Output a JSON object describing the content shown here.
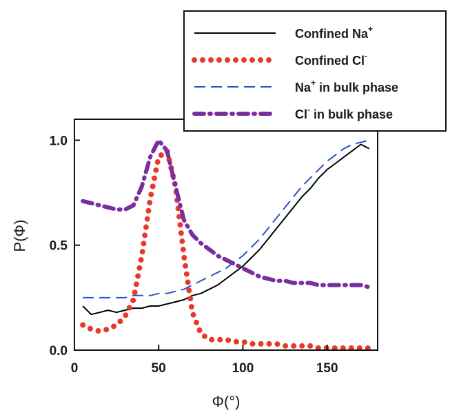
{
  "chart_data": {
    "type": "line",
    "title": "",
    "xlabel": "Φ(°)",
    "ylabel": "P(Φ)",
    "xlim": [
      0,
      180
    ],
    "ylim": [
      0,
      1.1
    ],
    "xticks": [
      0,
      50,
      100,
      150
    ],
    "yticks": [
      0.0,
      0.5,
      1.0
    ],
    "xtick_labels": [
      "0",
      "50",
      "100",
      "150"
    ],
    "ytick_labels": [
      "0.0",
      "0.5",
      "1.0"
    ],
    "grid": false,
    "legend_position": "top-right",
    "series": [
      {
        "name": "Confined Na+",
        "legend_base": "Confined Na",
        "legend_sup": "+",
        "color": "#000000",
        "style": "solid",
        "x": [
          5,
          10,
          15,
          20,
          25,
          30,
          35,
          40,
          45,
          50,
          55,
          60,
          65,
          70,
          75,
          80,
          85,
          90,
          95,
          100,
          105,
          110,
          115,
          120,
          125,
          130,
          135,
          140,
          145,
          150,
          155,
          160,
          165,
          170,
          175
        ],
        "y": [
          0.21,
          0.17,
          0.18,
          0.19,
          0.18,
          0.19,
          0.2,
          0.2,
          0.21,
          0.21,
          0.22,
          0.23,
          0.24,
          0.26,
          0.27,
          0.29,
          0.31,
          0.34,
          0.37,
          0.4,
          0.44,
          0.48,
          0.53,
          0.58,
          0.63,
          0.68,
          0.73,
          0.77,
          0.82,
          0.86,
          0.89,
          0.92,
          0.95,
          0.98,
          0.96
        ]
      },
      {
        "name": "Confined Cl-",
        "legend_base": "Confined Cl",
        "legend_sup": "-",
        "color": "#e8382c",
        "style": "dotted",
        "x": [
          5,
          10,
          15,
          20,
          25,
          30,
          35,
          40,
          45,
          50,
          55,
          60,
          65,
          70,
          75,
          80,
          85,
          90,
          95,
          100,
          105,
          110,
          115,
          120,
          125,
          130,
          135,
          140,
          145,
          150,
          155,
          160,
          165,
          170,
          175
        ],
        "y": [
          0.12,
          0.1,
          0.09,
          0.1,
          0.12,
          0.16,
          0.24,
          0.45,
          0.72,
          0.92,
          0.95,
          0.78,
          0.45,
          0.18,
          0.08,
          0.05,
          0.05,
          0.05,
          0.04,
          0.04,
          0.03,
          0.03,
          0.03,
          0.03,
          0.02,
          0.02,
          0.02,
          0.02,
          0.01,
          0.01,
          0.01,
          0.01,
          0.01,
          0.01,
          0.01
        ]
      },
      {
        "name": "Na+ in bulk phase",
        "legend_base": "Na",
        "legend_sup": "+",
        "legend_rest": " in bulk phase",
        "color": "#2b4fc8",
        "style": "dashed",
        "x": [
          5,
          10,
          15,
          20,
          25,
          30,
          35,
          40,
          45,
          50,
          55,
          60,
          65,
          70,
          75,
          80,
          85,
          90,
          95,
          100,
          105,
          110,
          115,
          120,
          125,
          130,
          135,
          140,
          145,
          150,
          155,
          160,
          165,
          170,
          175
        ],
        "y": [
          0.25,
          0.25,
          0.25,
          0.25,
          0.25,
          0.25,
          0.26,
          0.26,
          0.26,
          0.27,
          0.27,
          0.28,
          0.29,
          0.31,
          0.33,
          0.35,
          0.37,
          0.39,
          0.42,
          0.45,
          0.49,
          0.53,
          0.58,
          0.63,
          0.68,
          0.73,
          0.78,
          0.82,
          0.86,
          0.9,
          0.93,
          0.96,
          0.98,
          0.99,
          1.0
        ]
      },
      {
        "name": "Cl- in bulk phase",
        "legend_base": "Cl",
        "legend_sup": "-",
        "legend_rest": " in bulk phase",
        "color": "#7a2ea0",
        "style": "dashdot",
        "x": [
          5,
          10,
          15,
          20,
          25,
          30,
          35,
          40,
          45,
          50,
          55,
          60,
          65,
          70,
          75,
          80,
          85,
          90,
          95,
          100,
          105,
          110,
          115,
          120,
          125,
          130,
          135,
          140,
          145,
          150,
          155,
          160,
          165,
          170,
          175
        ],
        "y": [
          0.71,
          0.7,
          0.69,
          0.68,
          0.67,
          0.67,
          0.69,
          0.78,
          0.92,
          1.0,
          0.95,
          0.78,
          0.62,
          0.55,
          0.51,
          0.48,
          0.45,
          0.43,
          0.41,
          0.39,
          0.37,
          0.35,
          0.34,
          0.33,
          0.33,
          0.32,
          0.32,
          0.32,
          0.31,
          0.31,
          0.31,
          0.31,
          0.31,
          0.31,
          0.3
        ]
      }
    ]
  }
}
